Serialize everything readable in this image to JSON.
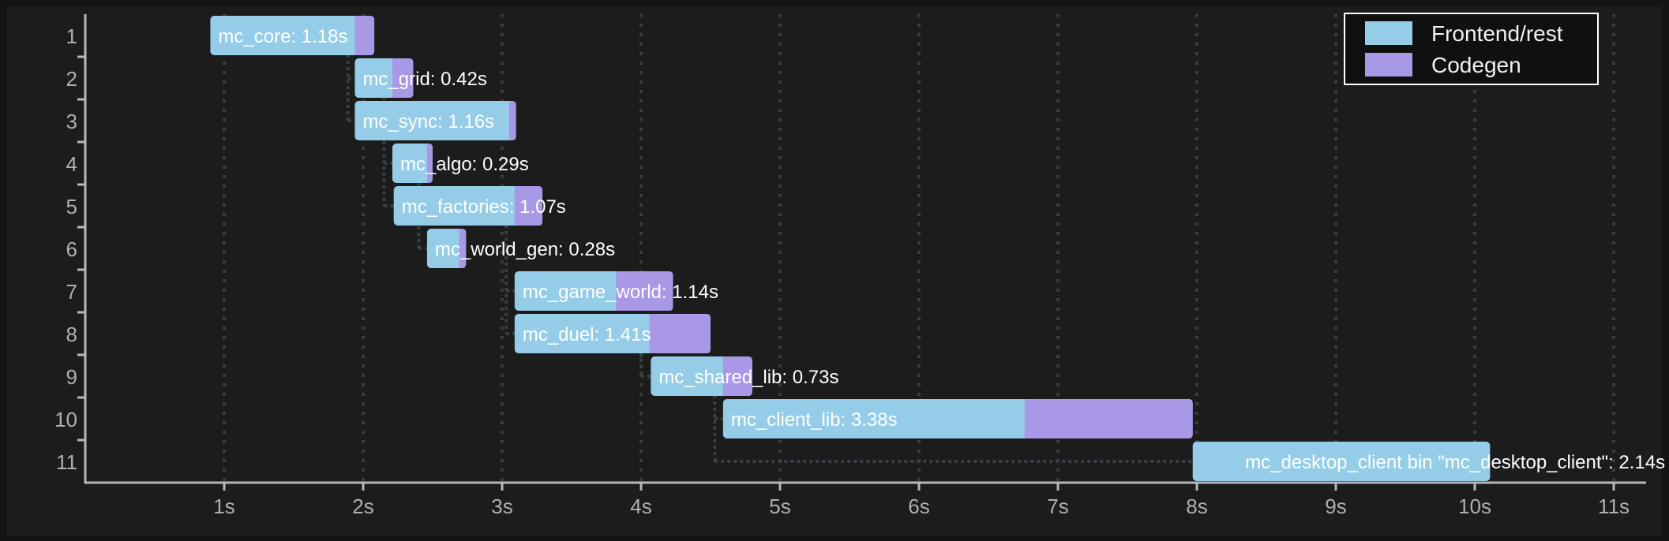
{
  "colors": {
    "background": "#1c1c1c",
    "outer": "#141414",
    "frontend": "#95cde8",
    "codegen": "#a898e6",
    "axis": "#b8b8b8",
    "grid": "#3c3c3c",
    "dependency": "#3a3f45",
    "legend_bg": "#101010",
    "legend_border": "#ffffff"
  },
  "legend": {
    "items": [
      {
        "label": "Frontend/rest",
        "color": "#95cde8"
      },
      {
        "label": "Codegen",
        "color": "#a898e6"
      }
    ]
  },
  "chart_data": {
    "type": "bar",
    "subtype": "gantt-timeline",
    "title": "",
    "xlabel": "",
    "ylabel": "",
    "xlim": [
      0,
      11
    ],
    "x_ticks": [
      "1s",
      "2s",
      "3s",
      "4s",
      "5s",
      "6s",
      "7s",
      "8s",
      "9s",
      "10s",
      "11s"
    ],
    "y_ticks": [
      "1",
      "2",
      "3",
      "4",
      "5",
      "6",
      "7",
      "8",
      "9",
      "10",
      "11"
    ],
    "grid": "vertical dotted",
    "legend_position": "top-right",
    "series": [
      {
        "name": "Frontend/rest",
        "color": "#95cde8"
      },
      {
        "name": "Codegen",
        "color": "#a898e6"
      }
    ],
    "units": [
      {
        "row": 1,
        "name": "mc_core",
        "label": "mc_core: 1.18s",
        "start": 0.9,
        "duration": 1.18,
        "codegen_start": 1.94
      },
      {
        "row": 2,
        "name": "mc_grid",
        "label": "mc_grid: 0.42s",
        "start": 1.94,
        "duration": 0.42,
        "codegen_start": 2.21
      },
      {
        "row": 3,
        "name": "mc_sync",
        "label": "mc_sync: 1.16s",
        "start": 1.94,
        "duration": 1.16,
        "codegen_start": 3.05
      },
      {
        "row": 4,
        "name": "mc_algo",
        "label": "mc_algo: 0.29s",
        "start": 2.21,
        "duration": 0.29,
        "codegen_start": 2.46
      },
      {
        "row": 5,
        "name": "mc_factories",
        "label": "mc_factories: 1.07s",
        "start": 2.22,
        "duration": 1.07,
        "codegen_start": 3.09
      },
      {
        "row": 6,
        "name": "mc_world_gen",
        "label": "mc_world_gen: 0.28s",
        "start": 2.46,
        "duration": 0.28,
        "codegen_start": 2.69
      },
      {
        "row": 7,
        "name": "mc_game_world",
        "label": "mc_game_world: 1.14s",
        "start": 3.09,
        "duration": 1.14,
        "codegen_start": 3.82
      },
      {
        "row": 8,
        "name": "mc_duel",
        "label": "mc_duel: 1.41s",
        "start": 3.09,
        "duration": 1.41,
        "codegen_start": 4.06
      },
      {
        "row": 9,
        "name": "mc_shared_lib",
        "label": "mc_shared_lib: 0.73s",
        "start": 4.07,
        "duration": 0.73,
        "codegen_start": 4.59
      },
      {
        "row": 10,
        "name": "mc_client_lib",
        "label": "mc_client_lib: 3.38s",
        "start": 4.59,
        "duration": 3.38,
        "codegen_start": 6.76
      },
      {
        "row": 11,
        "name": "mc_desktop_client",
        "label": "mc_desktop_client bin \"mc_desktop_client\": 2.14s",
        "start": 7.97,
        "duration": 2.14,
        "codegen_start": null,
        "label_anchor": "end",
        "label_x_end": 11.37
      }
    ],
    "dependencies": [
      {
        "from_row": 1,
        "at": 1.89,
        "to_rows": [
          2,
          3
        ]
      },
      {
        "from_row": 2,
        "at": 2.15,
        "to_rows": [
          4,
          5
        ]
      },
      {
        "from_row": 4,
        "at": 2.4,
        "to_rows": [
          6
        ]
      },
      {
        "from_row": 5,
        "at": 3.03,
        "to_rows": [
          7,
          8
        ]
      },
      {
        "from_row": 8,
        "at": 4.0,
        "to_rows": [
          9
        ]
      },
      {
        "from_row": 9,
        "at": 4.53,
        "to_rows": [
          10,
          11
        ]
      }
    ]
  }
}
